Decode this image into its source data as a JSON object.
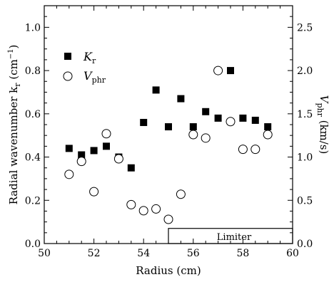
{
  "chart_data": {
    "type": "scatter",
    "xlabel": "Radius (cm)",
    "ylabel_left": "Radial wavenumber k",
    "ylabel_left_sub": "r",
    "ylabel_left_unit": " (cm",
    "ylabel_left_unit_sup": "−1",
    "ylabel_left_unit_close": ")",
    "ylabel_right": "V",
    "ylabel_right_sub": "phr",
    "ylabel_right_unit": " (km/s)",
    "xlim": [
      50,
      60
    ],
    "ylim_left": [
      0.0,
      1.1
    ],
    "ylim_right": [
      0.0,
      2.75
    ],
    "xticks": [
      "50",
      "52",
      "54",
      "56",
      "58",
      "60"
    ],
    "yticks_left": [
      "0.0",
      "0.2",
      "0.4",
      "0.6",
      "0.8",
      "1.0"
    ],
    "yticks_right": [
      "0.0",
      "0.5",
      "1.0",
      "1.5",
      "2.0",
      "2.5"
    ],
    "legend_position": "upper-left",
    "series": [
      {
        "name": "K",
        "name_sub": "r",
        "marker": "filled-square",
        "axis": "left",
        "points": [
          [
            51.0,
            0.44
          ],
          [
            51.5,
            0.41
          ],
          [
            52.0,
            0.43
          ],
          [
            52.5,
            0.45
          ],
          [
            53.0,
            0.4
          ],
          [
            53.5,
            0.35
          ],
          [
            54.0,
            0.56
          ],
          [
            54.5,
            0.71
          ],
          [
            55.0,
            0.54
          ],
          [
            55.5,
            0.67
          ],
          [
            56.0,
            0.54
          ],
          [
            56.5,
            0.61
          ],
          [
            57.0,
            0.58
          ],
          [
            57.5,
            0.8
          ],
          [
            58.0,
            0.58
          ],
          [
            58.5,
            0.57
          ],
          [
            59.0,
            0.54
          ]
        ]
      },
      {
        "name": "V",
        "name_sub": "phr",
        "marker": "open-circle",
        "axis": "right",
        "points": [
          [
            51.0,
            0.8
          ],
          [
            51.5,
            0.95
          ],
          [
            52.0,
            0.6
          ],
          [
            52.5,
            1.27
          ],
          [
            53.0,
            0.98
          ],
          [
            53.5,
            0.45
          ],
          [
            54.0,
            0.38
          ],
          [
            54.5,
            0.4
          ],
          [
            55.0,
            0.28
          ],
          [
            55.5,
            0.57
          ],
          [
            56.0,
            1.26
          ],
          [
            56.5,
            1.22
          ],
          [
            57.0,
            2.0
          ],
          [
            57.5,
            1.41
          ],
          [
            58.0,
            1.09
          ],
          [
            58.5,
            1.09
          ],
          [
            59.0,
            1.26
          ]
        ]
      }
    ],
    "annotation": {
      "label": "Limiter",
      "x_range": [
        55.0,
        60.0
      ],
      "y_range_left": [
        0.0,
        0.07
      ]
    }
  }
}
